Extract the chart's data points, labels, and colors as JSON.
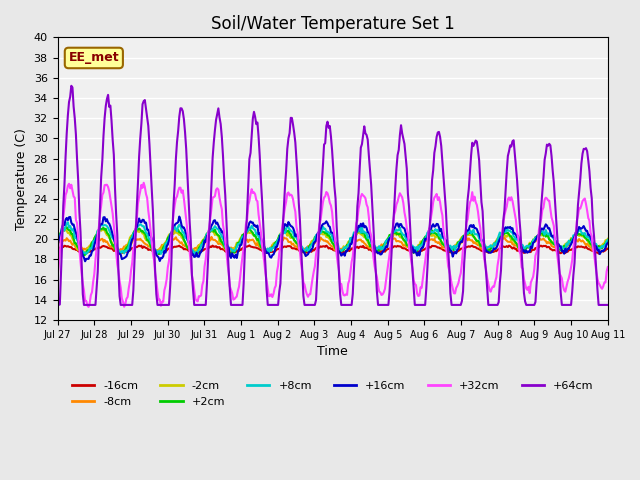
{
  "title": "Soil/Water Temperature Set 1",
  "xlabel": "Time",
  "ylabel": "Temperature (C)",
  "ylim": [
    12,
    40
  ],
  "yticks": [
    12,
    14,
    16,
    18,
    20,
    22,
    24,
    26,
    28,
    30,
    32,
    34,
    36,
    38,
    40
  ],
  "x_labels": [
    "Jul 27",
    "Jul 28",
    "Jul 29",
    "Jul 30",
    "Jul 31",
    "Aug 1",
    "Aug 2",
    "Aug 3",
    "Aug 4",
    "Aug 5",
    "Aug 6",
    "Aug 7",
    "Aug 8",
    "Aug 9",
    "Aug 10",
    "Aug 11"
  ],
  "series": {
    "-16cm": {
      "color": "#cc0000",
      "linewidth": 1.5
    },
    "-8cm": {
      "color": "#ff8800",
      "linewidth": 1.5
    },
    "-2cm": {
      "color": "#cccc00",
      "linewidth": 1.5
    },
    "+2cm": {
      "color": "#00cc00",
      "linewidth": 1.5
    },
    "+8cm": {
      "color": "#00cccc",
      "linewidth": 1.5
    },
    "+16cm": {
      "color": "#0000cc",
      "linewidth": 1.5
    },
    "+32cm": {
      "color": "#ff44ff",
      "linewidth": 1.5
    },
    "+64cm": {
      "color": "#8800cc",
      "linewidth": 1.5
    }
  },
  "label_box": {
    "text": "EE_met",
    "facecolor": "#ffff99",
    "edgecolor": "#996600"
  },
  "background_color": "#e8e8e8",
  "plot_background": "#f0f0f0",
  "grid_color": "#ffffff",
  "n_points": 480
}
